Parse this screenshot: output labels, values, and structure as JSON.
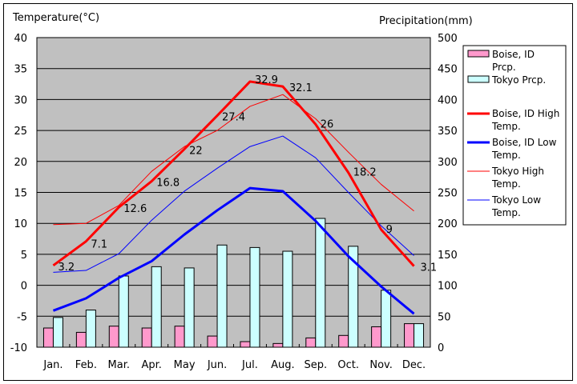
{
  "chart_data": {
    "type": "bar",
    "title": "",
    "ylabel": "Temperature(°C)",
    "y2label": "Precipitation(mm)",
    "ylim": [
      -10,
      40
    ],
    "y2lim": [
      0,
      500
    ],
    "yticks": [
      "40",
      "35",
      "30",
      "25",
      "20",
      "15",
      "10",
      "5",
      "0",
      "-5",
      "-10"
    ],
    "y2ticks": [
      "500",
      "450",
      "400",
      "350",
      "300",
      "250",
      "200",
      "150",
      "100",
      "50",
      "0"
    ],
    "grid": true,
    "legend_placement": "right",
    "categories": [
      "Jan.",
      "Feb.",
      "Mar.",
      "Apr.",
      "May",
      "Jun.",
      "Jul.",
      "Aug.",
      "Sep.",
      "Oct.",
      "Nov.",
      "Dec."
    ],
    "bar_series": [
      {
        "name": "Boise, ID Prcp.",
        "legend": [
          "Boise, ID",
          "Prcp."
        ],
        "axis": "right",
        "color": "#ff99cc",
        "values": [
          31,
          24,
          34,
          31,
          34,
          18,
          9,
          6,
          15,
          19,
          33,
          38
        ]
      },
      {
        "name": "Tokyo Prcp.",
        "legend": [
          "Tokyo Prcp."
        ],
        "axis": "right",
        "color": "#ccffff",
        "values": [
          48,
          60,
          115,
          130,
          128,
          165,
          161,
          155,
          208,
          163,
          92,
          38
        ]
      }
    ],
    "line_series": [
      {
        "name": "Boise, ID High Temp.",
        "legend": [
          "Boise, ID High",
          "Temp."
        ],
        "axis": "left",
        "color": "#ff0000",
        "width": "thick",
        "values": [
          3.2,
          7.1,
          12.6,
          16.8,
          22,
          27.4,
          32.9,
          32.1,
          26,
          18.2,
          9,
          3.1
        ],
        "data_labels": [
          "3.2",
          "7.1",
          "12.6",
          "16.8",
          "22",
          "27.4",
          "32.9",
          "32.1",
          "26",
          "18.2",
          "9",
          "3.1"
        ]
      },
      {
        "name": "Boise, ID Low Temp.",
        "legend": [
          "Boise, ID Low",
          "Temp."
        ],
        "axis": "left",
        "color": "#0000ff",
        "width": "thick",
        "values": [
          -4.1,
          -2.1,
          1.2,
          3.9,
          8.2,
          12.1,
          15.7,
          15.2,
          10.4,
          4.7,
          -0.2,
          -4.6
        ]
      },
      {
        "name": "Tokyo High Temp.",
        "legend": [
          "Tokyo High",
          "Temp."
        ],
        "axis": "left",
        "color": "#ff0000",
        "width": "thin",
        "values": [
          9.8,
          10.0,
          12.9,
          18.4,
          22.4,
          25.0,
          28.9,
          30.8,
          26.9,
          21.5,
          16.3,
          12.0
        ]
      },
      {
        "name": "Tokyo Low Temp.",
        "legend": [
          "Tokyo Low",
          "Temp."
        ],
        "axis": "left",
        "color": "#0000ff",
        "width": "thin",
        "values": [
          2.1,
          2.4,
          5.1,
          10.5,
          15.2,
          18.9,
          22.4,
          24.1,
          20.6,
          15.0,
          9.6,
          4.8
        ]
      }
    ],
    "plot_background": "#c0c0c0"
  }
}
